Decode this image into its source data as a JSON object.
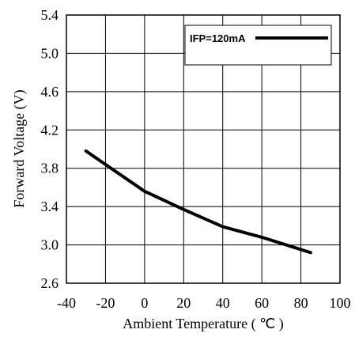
{
  "chart_data": {
    "type": "line",
    "xlabel": "Ambient Temperature ( ℃ )",
    "ylabel": "Forward Voltage (V)",
    "xlim": [
      -40,
      100
    ],
    "ylim": [
      2.6,
      5.4
    ],
    "x_ticks": [
      "-40",
      "-20",
      "0",
      "20",
      "40",
      "60",
      "80",
      "100"
    ],
    "y_ticks": [
      "2.6",
      "3.0",
      "3.4",
      "3.8",
      "4.2",
      "4.6",
      "5.0",
      "5.4"
    ],
    "grid": true,
    "legend_position": "top-right",
    "series": [
      {
        "name": "IFP=120mA",
        "color": "#000000",
        "x": [
          -30,
          -20,
          0,
          20,
          40,
          60,
          85
        ],
        "y": [
          3.98,
          3.84,
          3.56,
          3.37,
          3.19,
          3.08,
          2.92
        ]
      }
    ]
  }
}
